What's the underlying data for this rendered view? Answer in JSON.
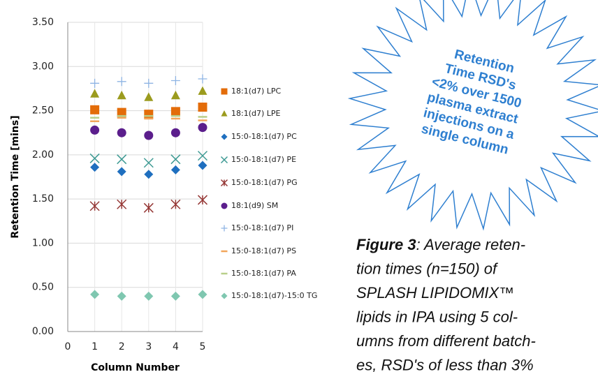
{
  "chart_data": {
    "type": "scatter",
    "y_label": "Retention Time  [mins]",
    "x_label": "Column Number",
    "xlim": [
      0,
      5
    ],
    "xticks": [
      0,
      1,
      2,
      3,
      4,
      5
    ],
    "ylim": [
      0,
      3.5
    ],
    "yticks": [
      {
        "value": 0,
        "label": "0.00"
      },
      {
        "value": 0.5,
        "label": "0.50"
      },
      {
        "value": 1,
        "label": "1.00"
      },
      {
        "value": 1.5,
        "label": "1.50"
      },
      {
        "value": 2,
        "label": "2.00"
      },
      {
        "value": 2.5,
        "label": "2.50"
      },
      {
        "value": 3,
        "label": "3.00"
      },
      {
        "value": 3.5,
        "label": "3.50"
      }
    ],
    "grid": true,
    "x": [
      1,
      2,
      3,
      4,
      5
    ],
    "series": [
      {
        "name": "18:1(d7) LPC",
        "color": "#e36c09",
        "marker": "square",
        "values": [
          2.51,
          2.48,
          2.46,
          2.49,
          2.54
        ]
      },
      {
        "name": "18:1(d7) LPE",
        "color": "#9b9b1e",
        "marker": "triangle",
        "values": [
          2.69,
          2.67,
          2.65,
          2.67,
          2.72
        ]
      },
      {
        "name": "15:0-18:1(d7) PC",
        "color": "#1f6fbf",
        "marker": "diamond",
        "values": [
          1.86,
          1.81,
          1.78,
          1.83,
          1.88
        ]
      },
      {
        "name": "15:0-18:1(d7) PE",
        "color": "#3e9a93",
        "marker": "x",
        "values": [
          1.96,
          1.95,
          1.91,
          1.95,
          1.99
        ]
      },
      {
        "name": "15:0-18:1(d7) PG",
        "color": "#953735",
        "marker": "star",
        "values": [
          1.42,
          1.44,
          1.4,
          1.44,
          1.49
        ]
      },
      {
        "name": "18:1(d9) SM",
        "color": "#5b1e8c",
        "marker": "circle",
        "values": [
          2.28,
          2.25,
          2.22,
          2.25,
          2.31
        ]
      },
      {
        "name": "15:0-18:1(d7) PI",
        "color": "#8eb4e3",
        "marker": "plus",
        "values": [
          2.81,
          2.83,
          2.81,
          2.84,
          2.86
        ]
      },
      {
        "name": "15:0-18:1(d7) PS",
        "color": "#f2a65a",
        "marker": "dash",
        "values": [
          2.38,
          2.42,
          2.41,
          2.41,
          2.39
        ]
      },
      {
        "name": "15:0-18:1(d7) PA",
        "color": "#b8cf8a",
        "marker": "dash",
        "values": [
          2.42,
          2.44,
          2.44,
          2.44,
          2.43
        ]
      },
      {
        "name": "15:0-18:1(d7)-15:0 TG",
        "color": "#7fc7b0",
        "marker": "diamond",
        "values": [
          0.42,
          0.4,
          0.4,
          0.4,
          0.42
        ]
      }
    ],
    "starburst_lines": [
      "Retention",
      "Time RSD's",
      "<2% over 1500",
      "plasma extract",
      "injections on a",
      "single column"
    ],
    "caption_label": "Figure 3",
    "caption_lines": [
      ":  Average reten-",
      "tion times (n=150)  of",
      "SPLASH LIPIDOMIX™",
      "lipids in IPA using 5 col-",
      "umns from different batch-",
      "es, RSD's of less than 3%"
    ]
  }
}
